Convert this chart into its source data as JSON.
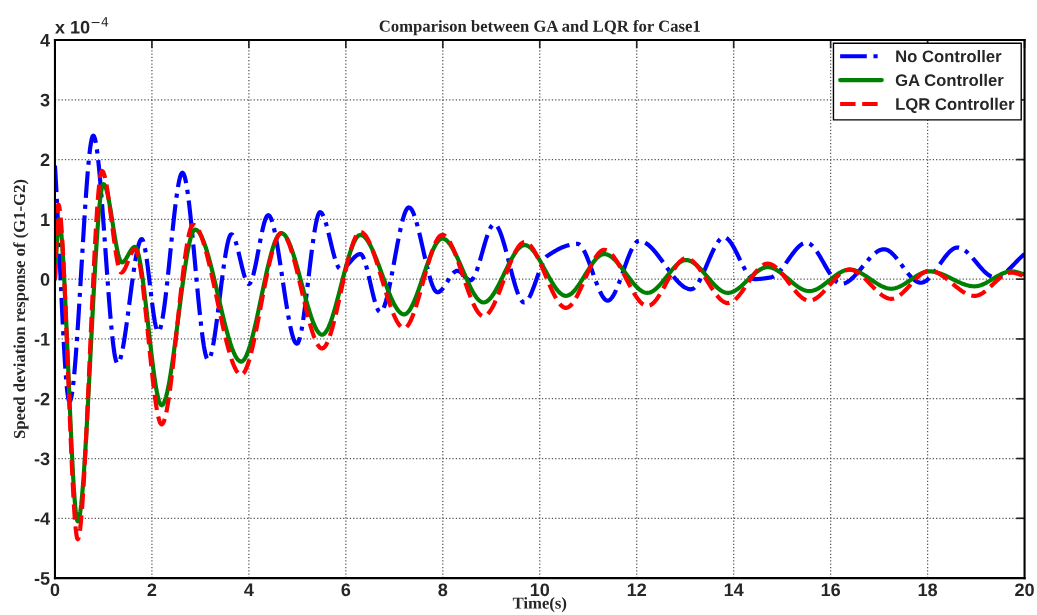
{
  "chart_data": {
    "type": "line",
    "title": "Comparison between GA and LQR for Case1",
    "xlabel": "Time(s)",
    "ylabel": "Speed deviation response of (G1-G2)",
    "annotations": [
      "x 10$^{−4}$"
    ],
    "xlim": [
      0,
      20
    ],
    "xticks": [
      0,
      2,
      4,
      6,
      8,
      10,
      12,
      14,
      16,
      18,
      20
    ],
    "ylim": [
      -5,
      4
    ],
    "yticks": [
      -5,
      -4,
      -3,
      -2,
      -1,
      0,
      1,
      2,
      3,
      4
    ],
    "grid": true,
    "legend": "top right",
    "marker": "none",
    "series": [
      {
        "name": "No Controller",
        "color": "#0000ff",
        "line_style": "dashdot",
        "x": [
          0,
          0.3,
          0.79,
          1.29,
          1.79,
          2.13,
          2.63,
          3.16,
          3.64,
          4.0,
          4.4,
          4.99,
          5.47,
          5.89,
          6.3,
          6.71,
          7.3,
          7.89,
          8.3,
          8.57,
          9.06,
          9.68,
          10.16,
          10.78,
          11.4,
          12.05,
          13.12,
          13.8,
          14.43,
          14.77,
          15.5,
          16.22,
          17.1,
          17.86,
          18.62,
          19.39,
          20
        ],
        "values": [
          1.9,
          -2.05,
          2.4,
          -1.41,
          0.67,
          -0.88,
          1.78,
          -1.35,
          0.75,
          -0.08,
          1.07,
          -1.08,
          1.12,
          0.17,
          0.42,
          -0.55,
          1.2,
          -0.22,
          0.14,
          -0.02,
          0.92,
          -0.39,
          0.39,
          0.59,
          -0.36,
          0.64,
          -0.17,
          0.7,
          0,
          0.03,
          0.61,
          -0.08,
          0.5,
          -0.06,
          0.53,
          0.03,
          0.42
        ]
      },
      {
        "name": "GA Controller",
        "color": "#008000",
        "line_style": "solid",
        "x": [
          0,
          0.08,
          0.47,
          1.0,
          1.38,
          1.65,
          2.2,
          2.89,
          3.84,
          4.67,
          5.51,
          6.3,
          7.2,
          7.99,
          8.84,
          9.69,
          10.54,
          11.33,
          12.22,
          13.02,
          13.88,
          14.7,
          15.56,
          16.39,
          17.25,
          18.04,
          18.97,
          19.73,
          20
        ],
        "values": [
          0,
          1.0,
          -4.05,
          1.59,
          0.28,
          0.54,
          -2.11,
          0.83,
          -1.38,
          0.77,
          -0.93,
          0.74,
          -0.59,
          0.68,
          -0.39,
          0.57,
          -0.28,
          0.42,
          -0.23,
          0.32,
          -0.23,
          0.2,
          -0.2,
          0.16,
          -0.16,
          0.13,
          -0.12,
          0.13,
          0.08
        ]
      },
      {
        "name": "LQR Controller",
        "color": "#ff0000",
        "line_style": "dashed",
        "x": [
          0,
          0.07,
          0.47,
          0.97,
          1.37,
          1.65,
          2.2,
          2.85,
          3.84,
          4.67,
          5.51,
          6.3,
          7.2,
          7.99,
          8.84,
          9.69,
          10.54,
          11.33,
          12.22,
          13.02,
          13.88,
          14.7,
          15.56,
          16.39,
          17.25,
          18.04,
          18.97,
          19.73,
          20
        ],
        "values": [
          0,
          1.25,
          -4.35,
          1.81,
          0.11,
          0.5,
          -2.43,
          0.91,
          -1.6,
          0.77,
          -1.16,
          0.79,
          -0.82,
          0.74,
          -0.62,
          0.62,
          -0.48,
          0.49,
          -0.45,
          0.35,
          -0.4,
          0.26,
          -0.36,
          0.16,
          -0.33,
          0.14,
          -0.28,
          0.11,
          0.05
        ]
      }
    ]
  }
}
